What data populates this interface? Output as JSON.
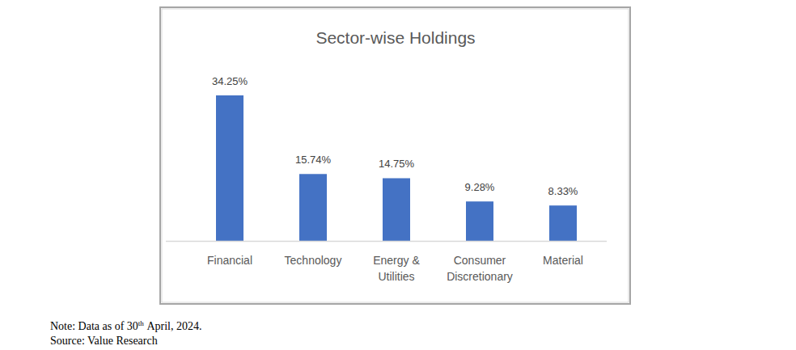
{
  "chart_data": {
    "type": "bar",
    "title": "Sector-wise Holdings",
    "categories": [
      "Financial",
      "Technology",
      "Energy & Utilities",
      "Consumer Discretionary",
      "Material"
    ],
    "values": [
      34.25,
      15.74,
      14.75,
      9.28,
      8.33
    ],
    "value_labels": [
      "34.25%",
      "15.74%",
      "14.75%",
      "9.28%",
      "8.33%"
    ],
    "color": "#4472c4",
    "data_labels": true,
    "tick_labels": "x",
    "grid": false
  },
  "note": "Note: Data as of 30th April, 2024.",
  "source": "Source: Value Research"
}
